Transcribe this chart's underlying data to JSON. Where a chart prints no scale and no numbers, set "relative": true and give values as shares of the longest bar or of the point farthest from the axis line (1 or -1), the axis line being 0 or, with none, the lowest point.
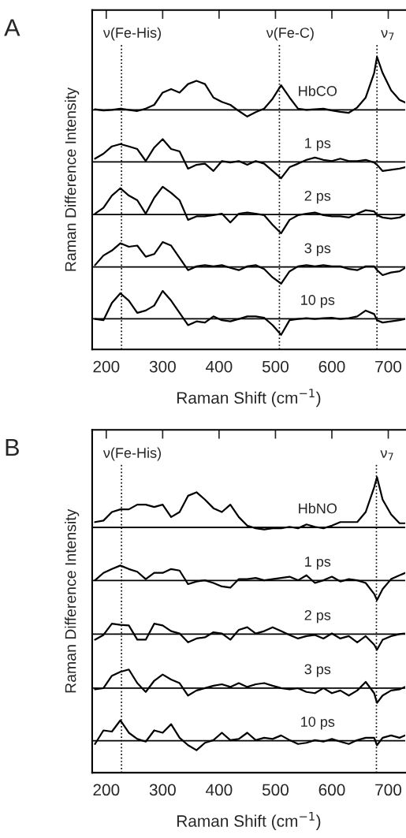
{
  "chart_data": [
    {
      "type": "line",
      "title": "A",
      "xlabel": "Raman Shift (cm$^{−1}$)",
      "ylabel": "Raman Difference Intensity",
      "relative": true,
      "xlim": [
        175,
        730
      ],
      "xticks": [
        200,
        300,
        400,
        500,
        600,
        700
      ],
      "grid": false,
      "legend": false,
      "marker": "none",
      "line_style": "solid",
      "x": [
        180,
        195,
        210,
        225,
        240,
        255,
        270,
        285,
        300,
        315,
        330,
        345,
        360,
        375,
        390,
        405,
        420,
        435,
        450,
        465,
        480,
        495,
        510,
        525,
        540,
        555,
        570,
        585,
        600,
        615,
        630,
        645,
        660,
        675,
        680,
        690,
        705,
        720,
        730
      ],
      "series": [
        {
          "name": "HbCO",
          "color": "#000000",
          "values": [
            0.821,
            0.817,
            0.819,
            0.823,
            0.819,
            0.815,
            0.823,
            0.836,
            0.878,
            0.89,
            0.878,
            0.907,
            0.918,
            0.907,
            0.861,
            0.846,
            0.836,
            0.815,
            0.796,
            0.811,
            0.823,
            0.857,
            0.903,
            0.861,
            0.823,
            0.819,
            0.821,
            0.823,
            0.817,
            0.812,
            0.809,
            0.827,
            0.861,
            0.945,
            1.0,
            0.945,
            0.886,
            0.853,
            0.844
          ]
        },
        {
          "name": "1 ps",
          "color": "#000000",
          "values": [
            0.652,
            0.669,
            0.694,
            0.702,
            0.694,
            0.685,
            0.644,
            0.69,
            0.719,
            0.685,
            0.677,
            0.618,
            0.631,
            0.635,
            0.61,
            0.644,
            0.639,
            0.644,
            0.631,
            0.644,
            0.635,
            0.61,
            0.585,
            0.623,
            0.635,
            0.648,
            0.656,
            0.648,
            0.644,
            0.652,
            0.644,
            0.644,
            0.648,
            0.639,
            0.631,
            0.61,
            0.614,
            0.618,
            0.623
          ]
        },
        {
          "name": "2 ps",
          "color": "#000000",
          "values": [
            0.464,
            0.484,
            0.526,
            0.551,
            0.526,
            0.51,
            0.464,
            0.518,
            0.556,
            0.535,
            0.51,
            0.443,
            0.455,
            0.455,
            0.459,
            0.464,
            0.434,
            0.464,
            0.468,
            0.464,
            0.459,
            0.426,
            0.397,
            0.443,
            0.459,
            0.464,
            0.468,
            0.459,
            0.455,
            0.455,
            0.451,
            0.464,
            0.476,
            0.472,
            0.459,
            0.451,
            0.447,
            0.451,
            0.461
          ]
        },
        {
          "name": "3 ps",
          "color": "#000000",
          "values": [
            0.288,
            0.321,
            0.338,
            0.363,
            0.351,
            0.355,
            0.317,
            0.326,
            0.367,
            0.355,
            0.313,
            0.271,
            0.284,
            0.288,
            0.284,
            0.288,
            0.279,
            0.271,
            0.284,
            0.288,
            0.275,
            0.246,
            0.225,
            0.267,
            0.284,
            0.288,
            0.284,
            0.288,
            0.284,
            0.284,
            0.275,
            0.271,
            0.284,
            0.284,
            0.271,
            0.254,
            0.263,
            0.267,
            0.279
          ]
        },
        {
          "name": "10 ps",
          "color": "#000000",
          "values": [
            0.104,
            0.1,
            0.159,
            0.192,
            0.167,
            0.125,
            0.133,
            0.15,
            0.2,
            0.167,
            0.125,
            0.083,
            0.096,
            0.092,
            0.113,
            0.1,
            0.096,
            0.104,
            0.113,
            0.113,
            0.108,
            0.083,
            0.05,
            0.1,
            0.104,
            0.107,
            0.104,
            0.107,
            0.108,
            0.104,
            0.107,
            0.113,
            0.133,
            0.121,
            0.1,
            0.092,
            0.096,
            0.1,
            0.104
          ]
        }
      ],
      "ref_lines": [
        {
          "axis": "x",
          "value": 227,
          "label": "ν(Fe-His)",
          "line_style": "dotted",
          "color": "#000000"
        },
        {
          "axis": "x",
          "value": 507,
          "label": "ν(Fe-C)",
          "line_style": "dotted",
          "color": "#000000"
        },
        {
          "axis": "x",
          "value": 680,
          "label": "ν$_{7}$",
          "line_style": "dotted",
          "color": "#000000"
        },
        {
          "axis": "y",
          "value": 0.819,
          "line_style": "solid",
          "color": "#000000"
        },
        {
          "axis": "y",
          "value": 0.641,
          "line_style": "solid",
          "color": "#000000"
        },
        {
          "axis": "y",
          "value": 0.461,
          "line_style": "solid",
          "color": "#000000"
        },
        {
          "axis": "y",
          "value": 0.282,
          "line_style": "solid",
          "color": "#000000"
        },
        {
          "axis": "y",
          "value": 0.105,
          "line_style": "solid",
          "color": "#000000"
        }
      ]
    },
    {
      "type": "line",
      "title": "B",
      "xlabel": "Raman Shift (cm$^{−1}$)",
      "ylabel": "Raman Difference Intensity",
      "relative": true,
      "xlim": [
        175,
        730
      ],
      "xticks": [
        200,
        300,
        400,
        500,
        600,
        700
      ],
      "grid": false,
      "legend": false,
      "marker": "none",
      "line_style": "solid",
      "x": [
        180,
        195,
        210,
        225,
        240,
        255,
        270,
        285,
        300,
        315,
        330,
        345,
        360,
        375,
        390,
        405,
        420,
        435,
        450,
        465,
        480,
        495,
        510,
        525,
        540,
        555,
        570,
        585,
        600,
        615,
        630,
        645,
        660,
        675,
        680,
        690,
        705,
        720,
        730
      ],
      "series": [
        {
          "name": "HbNO",
          "color": "#000000",
          "values": [
            0.848,
            0.853,
            0.882,
            0.891,
            0.891,
            0.907,
            0.907,
            0.899,
            0.907,
            0.865,
            0.882,
            0.937,
            0.949,
            0.924,
            0.895,
            0.882,
            0.907,
            0.865,
            0.836,
            0.827,
            0.823,
            0.827,
            0.827,
            0.832,
            0.827,
            0.84,
            0.832,
            0.827,
            0.836,
            0.848,
            0.848,
            0.848,
            0.882,
            0.966,
            1.0,
            0.924,
            0.874,
            0.844,
            0.844
          ]
        },
        {
          "name": "1 ps",
          "color": "#000000",
          "values": [
            0.651,
            0.676,
            0.689,
            0.701,
            0.689,
            0.68,
            0.655,
            0.676,
            0.676,
            0.689,
            0.684,
            0.638,
            0.647,
            0.651,
            0.642,
            0.63,
            0.626,
            0.655,
            0.655,
            0.659,
            0.651,
            0.655,
            0.659,
            0.663,
            0.651,
            0.668,
            0.642,
            0.651,
            0.663,
            0.647,
            0.655,
            0.651,
            0.642,
            0.605,
            0.584,
            0.621,
            0.655,
            0.668,
            0.676
          ]
        },
        {
          "name": "2 ps",
          "color": "#000000",
          "values": [
            0.45,
            0.466,
            0.504,
            0.5,
            0.498,
            0.45,
            0.45,
            0.504,
            0.498,
            0.479,
            0.471,
            0.441,
            0.454,
            0.458,
            0.475,
            0.471,
            0.45,
            0.483,
            0.492,
            0.471,
            0.479,
            0.492,
            0.479,
            0.466,
            0.454,
            0.462,
            0.466,
            0.454,
            0.471,
            0.454,
            0.462,
            0.441,
            0.462,
            0.433,
            0.416,
            0.45,
            0.462,
            0.469,
            0.471
          ]
        },
        {
          "name": "3 ps",
          "color": "#000000",
          "values": [
            0.282,
            0.286,
            0.328,
            0.341,
            0.349,
            0.303,
            0.273,
            0.311,
            0.332,
            0.315,
            0.303,
            0.261,
            0.278,
            0.286,
            0.294,
            0.299,
            0.29,
            0.303,
            0.29,
            0.299,
            0.303,
            0.294,
            0.286,
            0.282,
            0.286,
            0.273,
            0.269,
            0.286,
            0.269,
            0.278,
            0.261,
            0.278,
            0.307,
            0.269,
            0.236,
            0.261,
            0.278,
            0.282,
            0.29
          ]
        },
        {
          "name": "10 ps",
          "color": "#000000",
          "values": [
            0.097,
            0.143,
            0.139,
            0.177,
            0.135,
            0.114,
            0.105,
            0.143,
            0.135,
            0.164,
            0.118,
            0.093,
            0.076,
            0.101,
            0.11,
            0.135,
            0.11,
            0.114,
            0.135,
            0.11,
            0.118,
            0.114,
            0.126,
            0.11,
            0.097,
            0.101,
            0.11,
            0.105,
            0.114,
            0.105,
            0.097,
            0.11,
            0.118,
            0.118,
            0.093,
            0.118,
            0.126,
            0.118,
            0.126
          ]
        }
      ],
      "ref_lines": [
        {
          "axis": "x",
          "value": 227,
          "label": "ν(Fe-His)",
          "line_style": "dotted",
          "color": "#000000"
        },
        {
          "axis": "x",
          "value": 679,
          "label": "ν$_{7}$",
          "line_style": "dotted",
          "color": "#000000"
        },
        {
          "axis": "y",
          "value": 0.83,
          "line_style": "solid",
          "color": "#000000"
        },
        {
          "axis": "y",
          "value": 0.65,
          "line_style": "solid",
          "color": "#000000"
        },
        {
          "axis": "y",
          "value": 0.469,
          "line_style": "solid",
          "color": "#000000"
        },
        {
          "axis": "y",
          "value": 0.286,
          "line_style": "solid",
          "color": "#000000"
        },
        {
          "axis": "y",
          "value": 0.108,
          "line_style": "solid",
          "color": "#000000"
        }
      ]
    }
  ]
}
